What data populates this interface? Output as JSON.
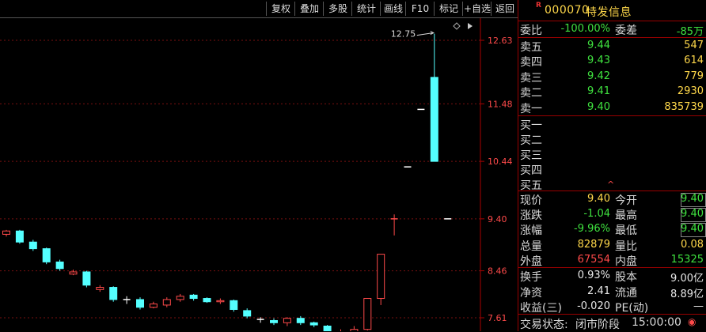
{
  "toolbar": [
    "复权",
    "叠加",
    "多股",
    "统计",
    "画线",
    "F10",
    "标记",
    "+自选",
    "返回"
  ],
  "stock": {
    "market_tag": "R",
    "code": "000070",
    "name": "特发信息"
  },
  "order_book": {
    "ratio_label": "委比",
    "ratio": "-100.00%",
    "diff_label": "委差",
    "diff": "-85万",
    "asks": [
      {
        "label": "卖五",
        "price": "9.44",
        "vol": "547"
      },
      {
        "label": "卖四",
        "price": "9.43",
        "vol": "614"
      },
      {
        "label": "卖三",
        "price": "9.42",
        "vol": "779"
      },
      {
        "label": "卖二",
        "price": "9.41",
        "vol": "2930"
      },
      {
        "label": "卖一",
        "price": "9.40",
        "vol": "835739"
      }
    ],
    "bids": [
      {
        "label": "买一"
      },
      {
        "label": "买二"
      },
      {
        "label": "买三"
      },
      {
        "label": "买四"
      },
      {
        "label": "买五"
      }
    ]
  },
  "quote": [
    {
      "l1": "现价",
      "v1": "9.40",
      "l2": "今开",
      "v2": "9.40"
    },
    {
      "l1": "涨跌",
      "v1": "-1.04",
      "l2": "最高",
      "v2": "9.40"
    },
    {
      "l1": "涨幅",
      "v1": "-9.96%",
      "l2": "最低",
      "v2": "9.40"
    },
    {
      "l1": "总量",
      "v1": "82879",
      "l2": "量比",
      "v2": "0.08"
    },
    {
      "l1": "外盘",
      "v1": "67554",
      "l2": "内盘",
      "v2": "15325"
    }
  ],
  "stats": [
    {
      "l1": "换手",
      "v1": "0.93%",
      "l2": "股本",
      "v2": "9.00亿"
    },
    {
      "l1": "净资",
      "v1": "2.41",
      "l2": "流通",
      "v2": "8.89亿"
    },
    {
      "l1": "收益(三)",
      "v1": "-0.020",
      "l2": "PE(动)",
      "v2": "—"
    }
  ],
  "status": {
    "label": "交易状态:",
    "state": "闭市阶段",
    "time": "15:00:00"
  },
  "chart_data": {
    "type": "candlestick",
    "y_ticks": [
      "12.63",
      "11.48",
      "10.44",
      "9.40",
      "8.46",
      "7.61"
    ],
    "annotations": [
      {
        "text": "12.75",
        "price": 12.75
      }
    ],
    "candles": [
      {
        "o": 9.12,
        "c": 9.18,
        "h": 9.2,
        "l": 9.08
      },
      {
        "o": 9.18,
        "c": 8.98,
        "h": 9.2,
        "l": 8.95
      },
      {
        "o": 8.98,
        "c": 8.86,
        "h": 9.02,
        "l": 8.82
      },
      {
        "o": 8.86,
        "c": 8.62,
        "h": 8.88,
        "l": 8.58
      },
      {
        "o": 8.62,
        "c": 8.5,
        "h": 8.66,
        "l": 8.46
      },
      {
        "o": 8.4,
        "c": 8.44,
        "h": 8.48,
        "l": 8.38
      },
      {
        "o": 8.44,
        "c": 8.2,
        "h": 8.46,
        "l": 8.16
      },
      {
        "o": 8.12,
        "c": 8.16,
        "h": 8.2,
        "l": 8.08
      },
      {
        "o": 8.16,
        "c": 7.94,
        "h": 8.18,
        "l": 7.9
      },
      {
        "o": 7.94,
        "c": 7.94,
        "h": 8.0,
        "l": 7.86
      },
      {
        "o": 7.94,
        "c": 7.8,
        "h": 7.98,
        "l": 7.76
      },
      {
        "o": 7.8,
        "c": 7.86,
        "h": 7.9,
        "l": 7.78
      },
      {
        "o": 7.84,
        "c": 7.94,
        "h": 7.98,
        "l": 7.8
      },
      {
        "o": 7.94,
        "c": 8.0,
        "h": 8.04,
        "l": 7.9
      },
      {
        "o": 8.02,
        "c": 7.96,
        "h": 8.04,
        "l": 7.92
      },
      {
        "o": 7.96,
        "c": 7.9,
        "h": 7.98,
        "l": 7.88
      },
      {
        "o": 7.9,
        "c": 7.92,
        "h": 7.96,
        "l": 7.86
      },
      {
        "o": 7.92,
        "c": 7.76,
        "h": 7.94,
        "l": 7.72
      },
      {
        "o": 7.74,
        "c": 7.64,
        "h": 7.78,
        "l": 7.6
      },
      {
        "o": 7.58,
        "c": 7.58,
        "h": 7.62,
        "l": 7.52
      },
      {
        "o": 7.56,
        "c": 7.52,
        "h": 7.6,
        "l": 7.48
      },
      {
        "o": 7.52,
        "c": 7.6,
        "h": 7.62,
        "l": 7.46
      },
      {
        "o": 7.6,
        "c": 7.52,
        "h": 7.64,
        "l": 7.48
      },
      {
        "o": 7.52,
        "c": 7.48,
        "h": 7.54,
        "l": 7.44
      },
      {
        "o": 7.46,
        "c": 7.36,
        "h": 7.48,
        "l": 7.32
      },
      {
        "o": 7.3,
        "c": 7.36,
        "h": 7.4,
        "l": 7.24
      },
      {
        "o": 7.34,
        "c": 7.4,
        "h": 7.46,
        "l": 7.3
      },
      {
        "o": 7.4,
        "c": 7.96,
        "h": 7.96,
        "l": 7.38
      },
      {
        "o": 7.96,
        "c": 8.76,
        "h": 8.76,
        "l": 7.84
      },
      {
        "o": 9.4,
        "c": 9.4,
        "h": 9.48,
        "l": 9.1
      },
      {
        "o": 10.34,
        "c": 10.34,
        "h": 10.34,
        "l": 10.34
      },
      {
        "o": 11.38,
        "c": 11.38,
        "h": 11.38,
        "l": 11.38
      },
      {
        "o": 11.96,
        "c": 10.44,
        "h": 12.75,
        "l": 10.44
      },
      {
        "o": 9.4,
        "c": 9.4,
        "h": 9.4,
        "l": 9.4
      }
    ]
  }
}
